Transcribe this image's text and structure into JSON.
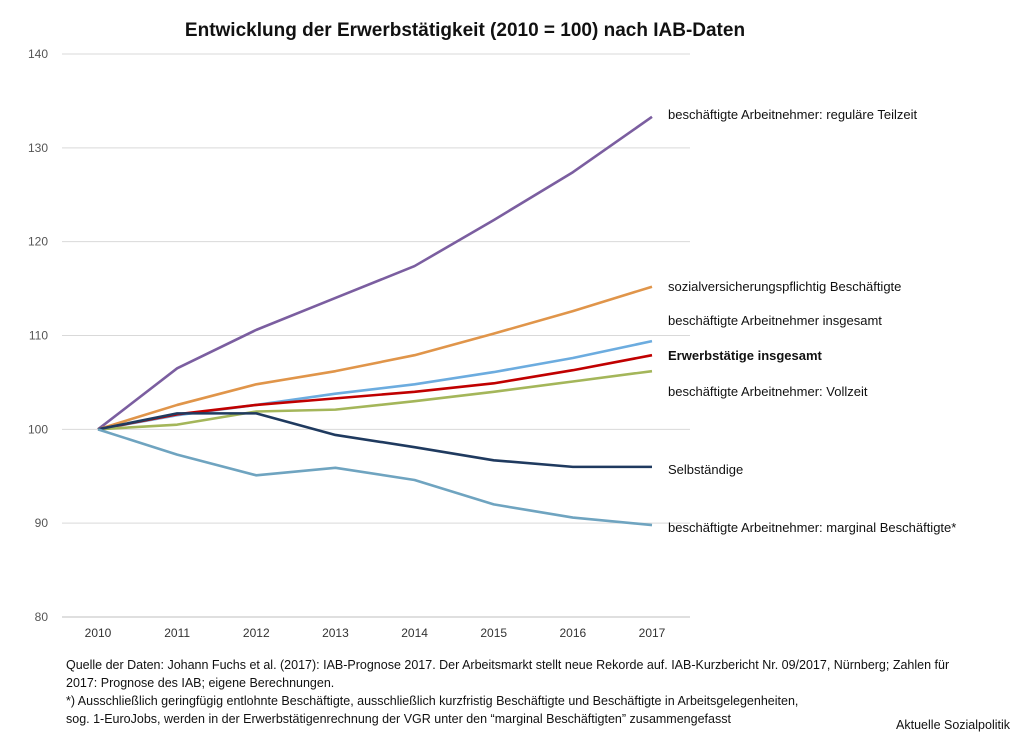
{
  "chart_data": {
    "type": "line",
    "title": "Entwicklung der Erwerbstätigkeit (2010 = 100) nach IAB-Daten",
    "xlabel": "",
    "ylabel": "",
    "x": [
      "2010",
      "2011",
      "2012",
      "2013",
      "2014",
      "2015",
      "2016",
      "2017"
    ],
    "ylim": [
      80,
      140
    ],
    "yticks": [
      "80",
      "90",
      "100",
      "110",
      "120",
      "130",
      "140"
    ],
    "grid": true,
    "legend": "direct labels at right end of lines",
    "series": [
      {
        "name": "beschäftigte Arbeitnehmer: reguläre Teilzeit",
        "color": "#7b5ea0",
        "bold": false,
        "values": [
          100,
          106.5,
          110.6,
          114.0,
          117.4,
          122.3,
          127.4,
          133.3
        ]
      },
      {
        "name": "sozialversicherungspflichtig Beschäftigte",
        "color": "#e0954a",
        "bold": false,
        "values": [
          100,
          102.6,
          104.8,
          106.2,
          107.9,
          110.2,
          112.6,
          115.2
        ]
      },
      {
        "name": "beschäftigte Arbeitnehmer insgesamt",
        "color": "#6cacdf",
        "bold": false,
        "values": [
          100,
          101.5,
          102.6,
          103.8,
          104.8,
          106.1,
          107.6,
          109.4
        ]
      },
      {
        "name": "Erwerbstätige insgesamt",
        "color": "#c00000",
        "bold": true,
        "values": [
          100,
          101.6,
          102.6,
          103.3,
          104.0,
          104.9,
          106.3,
          107.9
        ]
      },
      {
        "name": "beschäftigte Arbeitnehmer: Vollzeit",
        "color": "#a4b65a",
        "bold": false,
        "values": [
          100,
          100.5,
          101.9,
          102.1,
          103.0,
          104.0,
          105.1,
          106.2
        ]
      },
      {
        "name": "Selbständige",
        "color": "#1f3a5f",
        "bold": false,
        "values": [
          100,
          101.7,
          101.7,
          99.4,
          98.1,
          96.7,
          96.0,
          96.0
        ]
      },
      {
        "name": "beschäftigte Arbeitnehmer: marginal Beschäftigte*",
        "color": "#6fa4c0",
        "bold": false,
        "values": [
          100,
          97.3,
          95.1,
          95.9,
          94.6,
          92.0,
          90.6,
          89.8
        ]
      }
    ]
  },
  "footnotes": {
    "source_1": "Quelle der Daten: Johann Fuchs et al. (2017): IAB-Prognose 2017. Der Arbeitsmarkt stellt neue Rekorde auf. IAB-Kurzbericht Nr. 09/2017, Nürnberg; Zahlen für",
    "source_2": "2017: Prognose des IAB; eigene Berechnungen.",
    "note_1": "*) Ausschließlich geringfügig entlohnte Beschäftigte, ausschließlich kurzfristig Beschäftigte und Beschäftigte in Arbeitsgelegenheiten,",
    "note_2": "sog. 1-EuroJobs, werden in der Erwerbstätigenrechnung der VGR unter den “marginal Beschäftigten” zusammengefasst",
    "credit": "Aktuelle Sozialpolitik"
  }
}
